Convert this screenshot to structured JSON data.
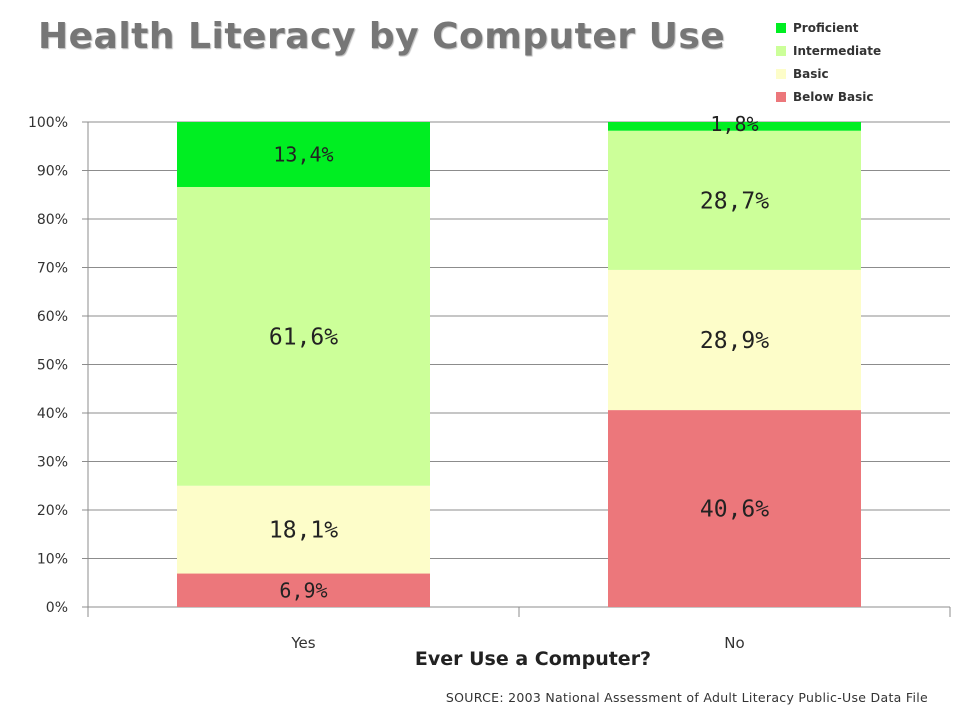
{
  "chart_data": {
    "type": "bar",
    "stacked": true,
    "title": "Health Literacy by Computer Use",
    "xlabel": "Ever Use a Computer?",
    "ylabel": "",
    "ylim": [
      0,
      100
    ],
    "yticks": [
      "0%",
      "10%",
      "20%",
      "30%",
      "40%",
      "50%",
      "60%",
      "70%",
      "80%",
      "90%",
      "100%"
    ],
    "categories": [
      "Yes",
      "No"
    ],
    "legend_position": "top-right",
    "series": [
      {
        "name": "Below Basic",
        "color": "#ec777b",
        "values": [
          6.9,
          40.6
        ],
        "labels": [
          "6,9%",
          "40,6%"
        ]
      },
      {
        "name": "Basic",
        "color": "#fdfdc9",
        "values": [
          18.1,
          28.9
        ],
        "labels": [
          "18,1%",
          "28,9%"
        ]
      },
      {
        "name": "Intermediate",
        "color": "#ccff99",
        "values": [
          61.6,
          28.7
        ],
        "labels": [
          "61,6%",
          "28,7%"
        ]
      },
      {
        "name": "Proficient",
        "color": "#00ee22",
        "values": [
          13.4,
          1.8
        ],
        "labels": [
          "13,4%",
          "1,8%"
        ]
      }
    ],
    "legend_order": [
      "Proficient",
      "Intermediate",
      "Basic",
      "Below Basic"
    ],
    "source": "SOURCE: 2003 National Assessment of Adult Literacy Public-Use Data File"
  }
}
